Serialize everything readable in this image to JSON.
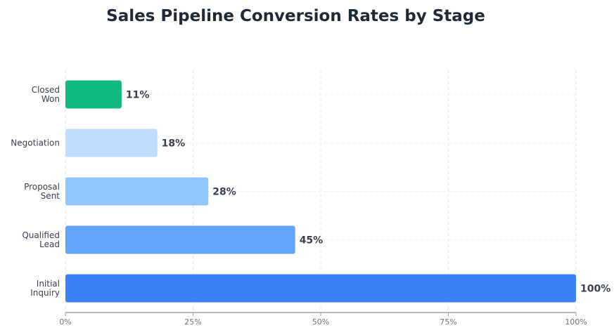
{
  "chart_data": {
    "type": "bar",
    "orientation": "horizontal",
    "title": "Sales Pipeline Conversion Rates by Stage",
    "xlabel": "",
    "ylabel": "",
    "xlim": [
      0,
      100
    ],
    "x_ticks": [
      {
        "value": 0,
        "label": "0%"
      },
      {
        "value": 25,
        "label": "25%"
      },
      {
        "value": 50,
        "label": "50%"
      },
      {
        "value": 75,
        "label": "75%"
      },
      {
        "value": 100,
        "label": "100%"
      }
    ],
    "grid": true,
    "legend": "none",
    "categories": [
      [
        "Closed",
        "Won"
      ],
      [
        "Negotiation"
      ],
      [
        "Proposal",
        "Sent"
      ],
      [
        "Qualified",
        "Lead"
      ],
      [
        "Initial",
        "Inquiry"
      ]
    ],
    "values": [
      11,
      18,
      28,
      45,
      100
    ],
    "value_labels": [
      "11%",
      "18%",
      "28%",
      "45%",
      "100%"
    ],
    "colors": [
      "#10b981",
      "#bfdbfe",
      "#93c5fd",
      "#60a5fa",
      "#3b82f6"
    ]
  }
}
